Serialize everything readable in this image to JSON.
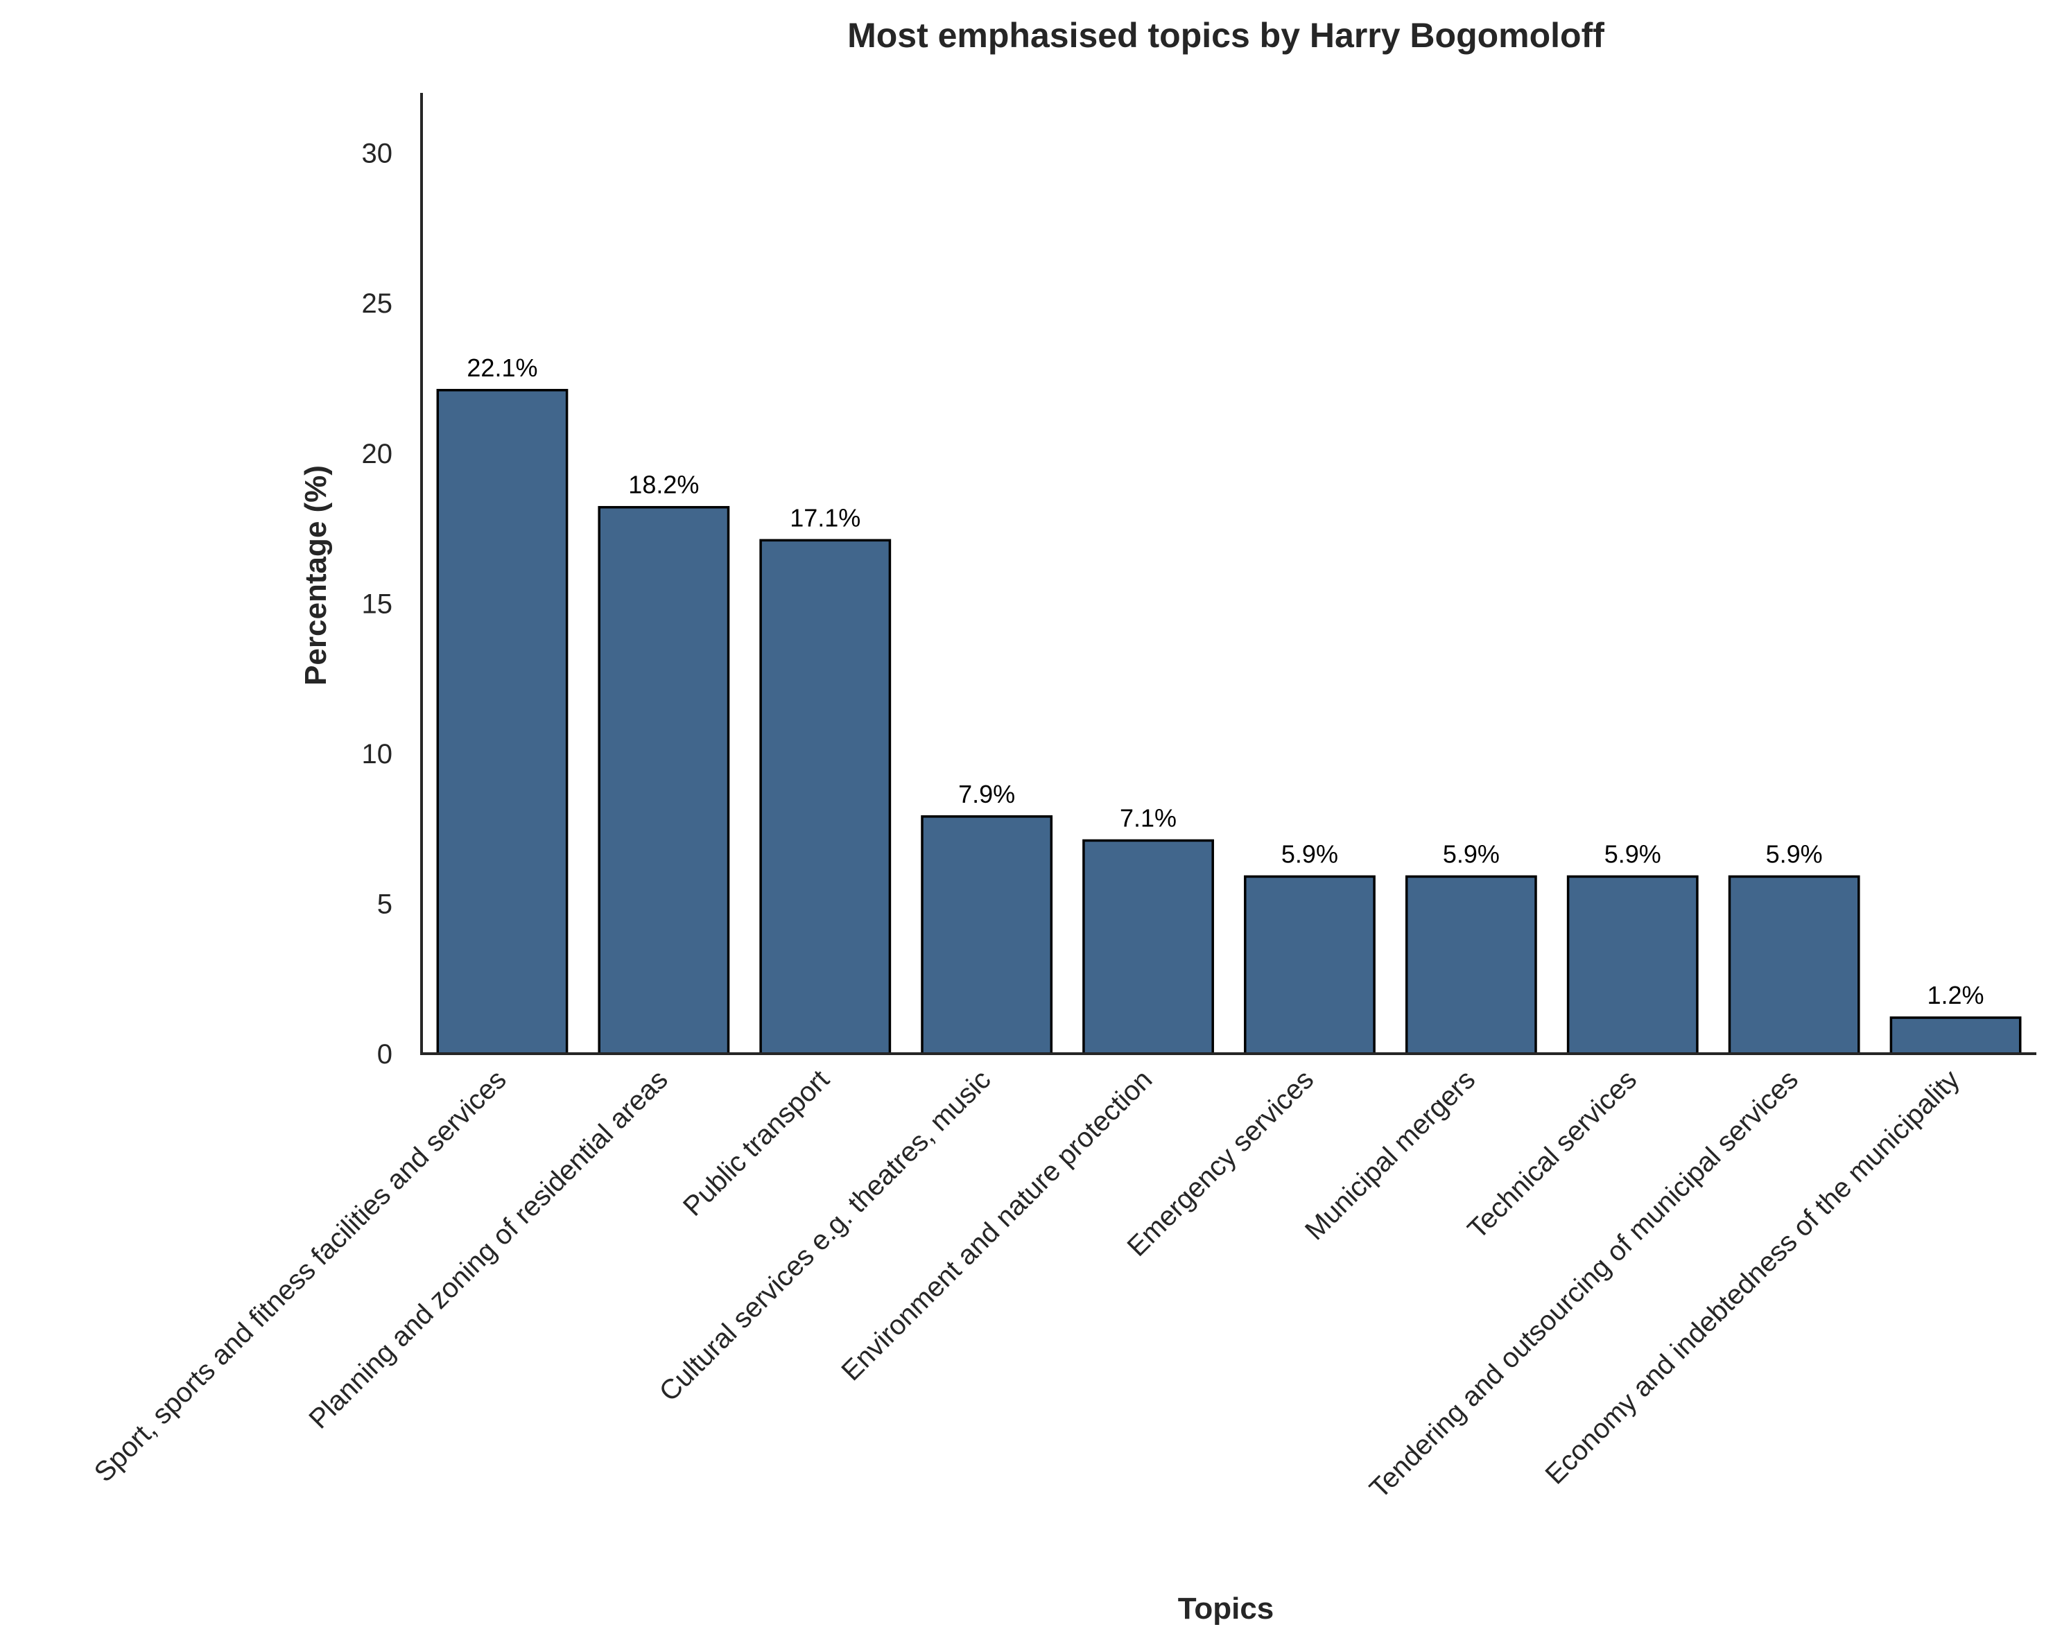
{
  "chart_data": {
    "type": "bar",
    "title": "Most emphasised topics by Harry Bogomoloff",
    "xlabel": "Topics",
    "ylabel": "Percentage (%)",
    "ylim": [
      0,
      32
    ],
    "yticks": [
      0,
      5,
      10,
      15,
      20,
      25,
      30
    ],
    "grid": false,
    "legend": "none",
    "bar_color": "#41668C",
    "edge_color": "#000000",
    "categories": [
      "Sport, sports and fitness facilities and services",
      "Planning and zoning of residential areas",
      "Public transport",
      "Cultural services e.g. theatres, music",
      "Environment and nature protection",
      "Emergency services",
      "Municipal mergers",
      "Technical services",
      "Tendering and outsourcing of municipal services",
      "Economy and indebtedness of the municipality"
    ],
    "values": [
      22.1,
      18.2,
      17.1,
      7.9,
      7.1,
      5.9,
      5.9,
      5.9,
      5.9,
      1.2
    ],
    "value_labels": [
      "22.1%",
      "18.2%",
      "17.1%",
      "7.9%",
      "7.1%",
      "5.9%",
      "5.9%",
      "5.9%",
      "5.9%",
      "1.2%"
    ]
  }
}
